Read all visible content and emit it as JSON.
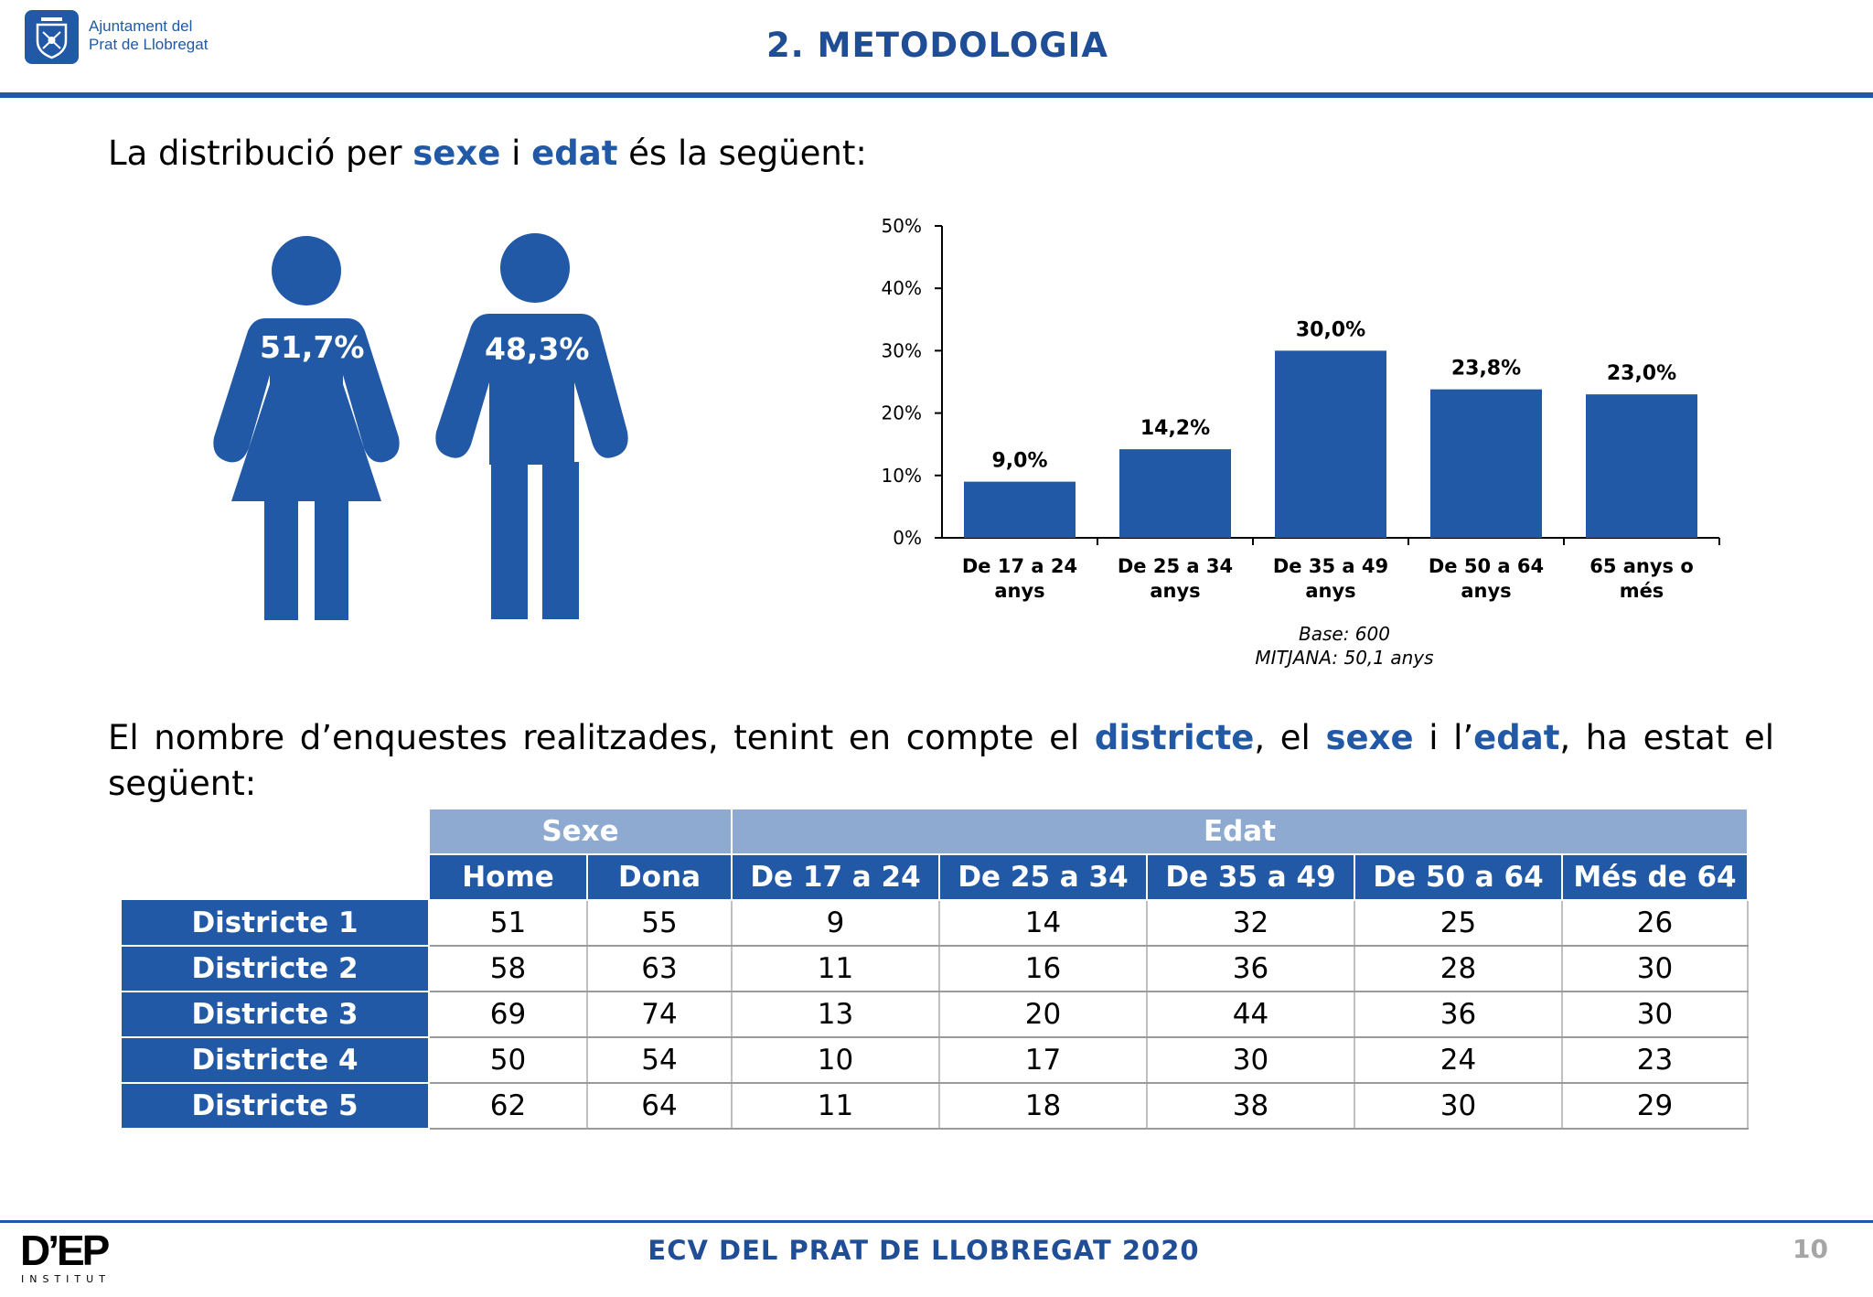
{
  "header": {
    "org_line1": "Ajuntament del",
    "org_line2": "Prat de Llobregat",
    "title": "2. METODOLOGIA"
  },
  "intro": {
    "text_before": "La distribució per ",
    "kw_sexe": "sexe",
    "text_i": " i ",
    "kw_edat": "edat",
    "text_after": " és la següent:"
  },
  "gender": {
    "female_pct": "51,7%",
    "male_pct": "48,3%"
  },
  "chart_data": {
    "type": "bar",
    "categories": [
      "De 17 a 24 anys",
      "De 25 a 34 anys",
      "De 35 a 49 anys",
      "De 50 a 64 anys",
      "65 anys o més"
    ],
    "category_lines": [
      [
        "De 17 a 24",
        "anys"
      ],
      [
        "De 25 a 34",
        "anys"
      ],
      [
        "De 35 a 49",
        "anys"
      ],
      [
        "De 50 a 64",
        "anys"
      ],
      [
        "65 anys o",
        "més"
      ]
    ],
    "values": [
      9.0,
      14.2,
      30.0,
      23.8,
      23.0
    ],
    "data_labels": [
      "9,0%",
      "14,2%",
      "30,0%",
      "23,8%",
      "23,0%"
    ],
    "yticks": [
      "0%",
      "10%",
      "20%",
      "30%",
      "40%",
      "50%"
    ],
    "ylim": [
      0,
      50
    ],
    "bar_color": "#2159a6",
    "note1": "Base: 600",
    "note2": "MITJANA: 50,1 anys"
  },
  "second_para": {
    "t1": "El nombre d’enquestes realitzades, tenint en compte el ",
    "kw_districte": "districte",
    "t2": ", el ",
    "kw_sexe": "sexe",
    "t3": " i l’",
    "kw_edat": "edat",
    "t4": ", ha estat el següent:"
  },
  "table": {
    "group_sexe": "Sexe",
    "group_edat": "Edat",
    "columns": [
      "Home",
      "Dona",
      "De 17 a 24",
      "De 25 a 34",
      "De 35 a 49",
      "De 50 a 64",
      "Més de 64"
    ],
    "rows": [
      {
        "label": "Districte 1",
        "values": [
          "51",
          "55",
          "9",
          "14",
          "32",
          "25",
          "26"
        ]
      },
      {
        "label": "Districte 2",
        "values": [
          "58",
          "63",
          "11",
          "16",
          "36",
          "28",
          "30"
        ]
      },
      {
        "label": "Districte 3",
        "values": [
          "69",
          "74",
          "13",
          "20",
          "44",
          "36",
          "30"
        ]
      },
      {
        "label": "Districte 4",
        "values": [
          "50",
          "54",
          "10",
          "17",
          "30",
          "24",
          "23"
        ]
      },
      {
        "label": "Districte 5",
        "values": [
          "62",
          "64",
          "11",
          "18",
          "38",
          "30",
          "29"
        ]
      }
    ]
  },
  "footer": {
    "title": "ECV DEL PRAT DE LLOBREGAT 2020",
    "page": "10",
    "brand": "D’EP",
    "brand_sub": "INSTITUT"
  },
  "colors": {
    "accent": "#2159a6",
    "title_blue": "#1f4e96",
    "table_header_light": "#8eaad0"
  }
}
